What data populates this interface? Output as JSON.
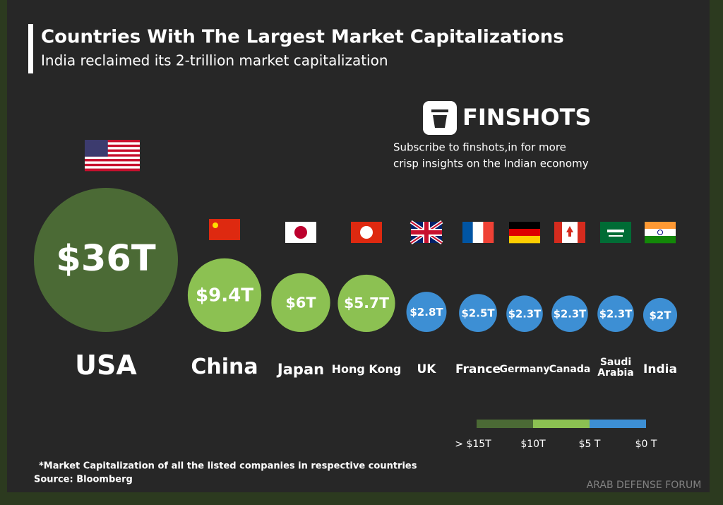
{
  "chart_data": {
    "type": "bubble",
    "title": "Countries With The Largest Market Capitalizations",
    "subtitle": "India reclaimed its 2-trillion market capitalization",
    "brand": "FINSHOTS",
    "promo": [
      "Subscribe to finshots,in for more",
      "crisp insights on the Indian economy"
    ],
    "categories": [
      "USA",
      "China",
      "Japan",
      "Hong Kong",
      "UK",
      "France",
      "Germany",
      "Canada",
      "Saudi Arabia",
      "India"
    ],
    "values": [
      36,
      9.4,
      6,
      5.7,
      2.8,
      2.5,
      2.3,
      2.3,
      2.3,
      2
    ],
    "value_labels": [
      "$36T",
      "$9.4T",
      "$6T",
      "$5.7T",
      "$2.8T",
      "$2.5T",
      "$2.3T",
      "$2.3T",
      "$2.3T",
      "$2T"
    ],
    "color_scale": {
      "ticks": [
        {
          "value": 15,
          "label": "> $15T"
        },
        {
          "value": 10,
          "label": "$10T"
        },
        {
          "value": 5,
          "label": "$5 T"
        },
        {
          "value": 0,
          "label": "$0 T"
        }
      ],
      "colors": [
        "#4b6a35",
        "#8cc152",
        "#3d8fd4"
      ]
    },
    "footnote": "*Market Capitalization of all the listed companies in respective countries",
    "source": "Source: Bloomberg",
    "watermark": "ARAB DEFENSE FORUM"
  }
}
